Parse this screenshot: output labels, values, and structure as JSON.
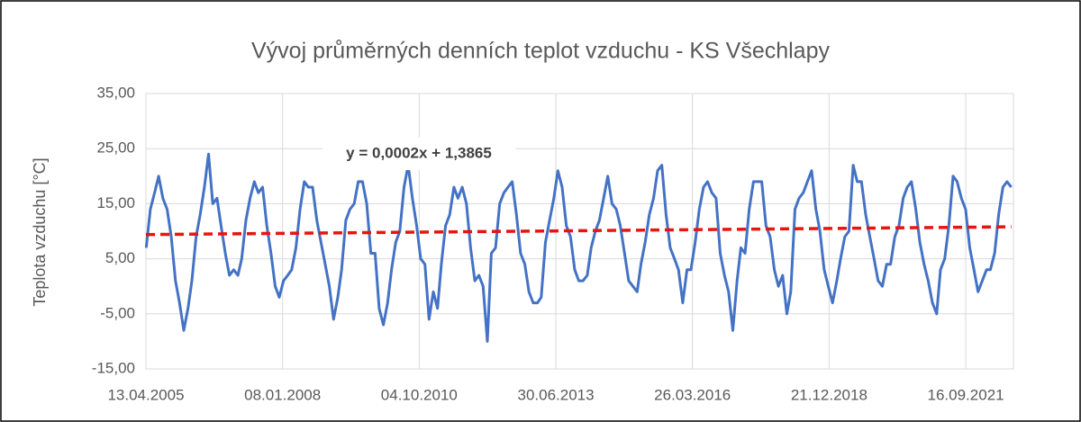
{
  "chart_data": {
    "type": "line",
    "title": "Vývoj průměrných denních teplot vzduchu - KS Všechlapy",
    "ylabel": "Teplota vzduchu [°C]",
    "grid": true,
    "ylim": [
      -15,
      35
    ],
    "yticks": [
      {
        "value": -15,
        "label": "-15,00"
      },
      {
        "value": -5,
        "label": "-5,00"
      },
      {
        "value": 5,
        "label": "5,00"
      },
      {
        "value": 15,
        "label": "15,00"
      },
      {
        "value": 25,
        "label": "25,00"
      },
      {
        "value": 35,
        "label": "35,00"
      }
    ],
    "xlim": [
      "13.04.2005",
      "31.08.2022"
    ],
    "xticks": [
      "13.04.2005",
      "08.01.2008",
      "04.10.2010",
      "30.06.2013",
      "26.03.2016",
      "21.12.2018",
      "16.09.2021"
    ],
    "x": [
      "15.04.2005",
      "15.05.2005",
      "15.06.2005",
      "15.07.2005",
      "15.08.2005",
      "15.09.2005",
      "15.10.2005",
      "15.11.2005",
      "15.12.2005",
      "15.01.2006",
      "15.02.2006",
      "15.03.2006",
      "15.04.2006",
      "15.05.2006",
      "15.06.2006",
      "15.07.2006",
      "15.08.2006",
      "15.09.2006",
      "15.10.2006",
      "15.11.2006",
      "15.12.2006",
      "15.01.2007",
      "15.02.2007",
      "15.03.2007",
      "15.04.2007",
      "15.05.2007",
      "15.06.2007",
      "15.07.2007",
      "15.08.2007",
      "15.09.2007",
      "15.10.2007",
      "15.11.2007",
      "15.12.2007",
      "15.01.2008",
      "15.02.2008",
      "15.03.2008",
      "15.04.2008",
      "15.05.2008",
      "15.06.2008",
      "15.07.2008",
      "15.08.2008",
      "15.09.2008",
      "15.10.2008",
      "15.11.2008",
      "15.12.2008",
      "15.01.2009",
      "15.02.2009",
      "15.03.2009",
      "15.04.2009",
      "15.05.2009",
      "15.06.2009",
      "15.07.2009",
      "15.08.2009",
      "15.09.2009",
      "15.10.2009",
      "15.11.2009",
      "15.12.2009",
      "15.01.2010",
      "15.02.2010",
      "15.03.2010",
      "15.04.2010",
      "15.05.2010",
      "15.06.2010",
      "15.07.2010",
      "15.08.2010",
      "15.09.2010",
      "15.10.2010",
      "15.11.2010",
      "15.12.2010",
      "15.01.2011",
      "15.02.2011",
      "15.03.2011",
      "15.04.2011",
      "15.05.2011",
      "15.06.2011",
      "15.07.2011",
      "15.08.2011",
      "15.09.2011",
      "15.10.2011",
      "15.11.2011",
      "15.12.2011",
      "15.01.2012",
      "15.02.2012",
      "15.03.2012",
      "15.04.2012",
      "15.05.2012",
      "15.06.2012",
      "15.07.2012",
      "15.08.2012",
      "15.09.2012",
      "15.10.2012",
      "15.11.2012",
      "15.12.2012",
      "15.01.2013",
      "15.02.2013",
      "15.03.2013",
      "15.04.2013",
      "15.05.2013",
      "15.06.2013",
      "15.07.2013",
      "15.08.2013",
      "15.09.2013",
      "15.10.2013",
      "15.11.2013",
      "15.12.2013",
      "15.01.2014",
      "15.02.2014",
      "15.03.2014",
      "15.04.2014",
      "15.05.2014",
      "15.06.2014",
      "15.07.2014",
      "15.08.2014",
      "15.09.2014",
      "15.10.2014",
      "15.11.2014",
      "15.12.2014",
      "15.01.2015",
      "15.02.2015",
      "15.03.2015",
      "15.04.2015",
      "15.05.2015",
      "15.06.2015",
      "15.07.2015",
      "15.08.2015",
      "15.09.2015",
      "15.10.2015",
      "15.11.2015",
      "15.12.2015",
      "15.01.2016",
      "15.02.2016",
      "15.03.2016",
      "15.04.2016",
      "15.05.2016",
      "15.06.2016",
      "15.07.2016",
      "15.08.2016",
      "15.09.2016",
      "15.10.2016",
      "15.11.2016",
      "15.12.2016",
      "15.01.2017",
      "15.02.2017",
      "15.03.2017",
      "15.04.2017",
      "15.05.2017",
      "15.06.2017",
      "15.07.2017",
      "15.08.2017",
      "15.09.2017",
      "15.10.2017",
      "15.11.2017",
      "15.12.2017",
      "15.01.2018",
      "15.02.2018",
      "15.03.2018",
      "15.04.2018",
      "15.05.2018",
      "15.06.2018",
      "15.07.2018",
      "15.08.2018",
      "15.09.2018",
      "15.10.2018",
      "15.11.2018",
      "15.12.2018",
      "15.01.2019",
      "15.02.2019",
      "15.03.2019",
      "15.04.2019",
      "15.05.2019",
      "15.06.2019",
      "15.07.2019",
      "15.08.2019",
      "15.09.2019",
      "15.10.2019",
      "15.11.2019",
      "15.12.2019",
      "15.01.2020",
      "15.02.2020",
      "15.03.2020",
      "15.04.2020",
      "15.05.2020",
      "15.06.2020",
      "15.07.2020",
      "15.08.2020",
      "15.09.2020",
      "15.10.2020",
      "15.11.2020",
      "15.12.2020",
      "15.01.2021",
      "15.02.2021",
      "15.03.2021",
      "15.04.2021",
      "15.05.2021",
      "15.06.2021",
      "15.07.2021",
      "15.08.2021",
      "15.09.2021",
      "15.10.2021",
      "15.11.2021",
      "15.12.2021",
      "15.01.2022",
      "15.02.2022",
      "15.03.2022",
      "15.04.2022",
      "15.05.2022",
      "15.06.2022",
      "15.07.2022",
      "15.08.2022"
    ],
    "series": [
      {
        "color": "#4472c4",
        "values": [
          7,
          14,
          17,
          20,
          16,
          14,
          9,
          1,
          -3,
          -8,
          -4,
          1,
          9,
          13,
          18,
          24,
          15,
          16,
          11,
          6,
          2,
          3,
          2,
          5,
          12,
          16,
          19,
          17,
          18,
          11,
          6,
          0,
          -2,
          1,
          2,
          3,
          7,
          14,
          19,
          18,
          18,
          12,
          8,
          4,
          0,
          -6,
          -2,
          3,
          12,
          14,
          15,
          19,
          19,
          15,
          6,
          6,
          -4,
          -7,
          -3,
          3,
          8,
          10,
          18,
          22,
          16,
          11,
          5,
          4,
          -6,
          -1,
          -4,
          4,
          11,
          13,
          18,
          16,
          18,
          15,
          7,
          1,
          2,
          0,
          -10,
          6,
          7,
          15,
          17,
          18,
          19,
          13,
          6,
          4,
          -1,
          -3,
          -3,
          -2,
          8,
          12,
          16,
          21,
          18,
          11,
          9,
          3,
          1,
          1,
          2,
          7,
          10,
          12,
          16,
          20,
          15,
          14,
          11,
          6,
          1,
          0,
          -1,
          4,
          8,
          13,
          16,
          21,
          22,
          13,
          7,
          5,
          3,
          -3,
          3,
          3,
          8,
          14,
          18,
          19,
          17,
          16,
          6,
          2,
          -1,
          -8,
          1,
          7,
          6,
          14,
          19,
          19,
          19,
          11,
          9,
          3,
          0,
          2,
          -5,
          -1,
          14,
          16,
          17,
          19,
          21,
          14,
          10,
          3,
          0,
          -3,
          1,
          5,
          9,
          10,
          22,
          19,
          19,
          13,
          9,
          5,
          1,
          0,
          4,
          4,
          9,
          11,
          16,
          18,
          19,
          14,
          8,
          4,
          1,
          -3,
          -5,
          3,
          5,
          11,
          20,
          19,
          16,
          14,
          7,
          3,
          -1,
          1,
          3,
          3,
          6,
          13,
          18,
          19,
          18
        ]
      }
    ],
    "trendline": {
      "color": "#e8150f",
      "x": [
        "13.04.2005",
        "15.08.2022"
      ],
      "values": [
        9.4,
        10.8
      ],
      "label": "y = 0,0002x + 1,3865"
    }
  }
}
